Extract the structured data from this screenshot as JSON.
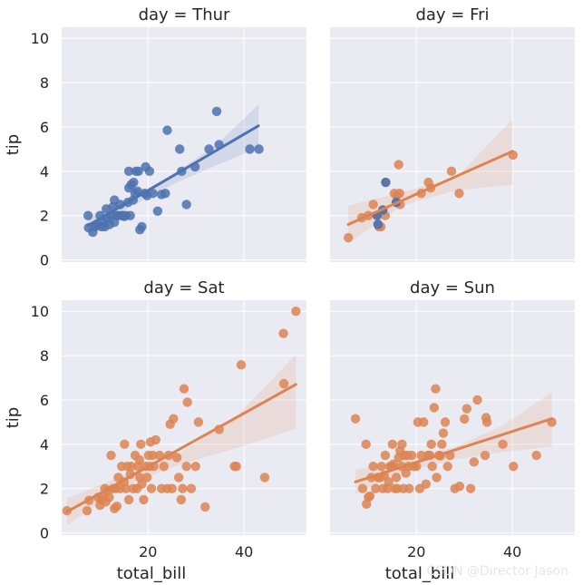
{
  "watermark": "CSDN @Director Jason",
  "chart_data": {
    "type": "scatter",
    "layout": "facet-grid-2x2",
    "xlabel": "total_bill",
    "ylabel": "tip",
    "xlim": [
      2,
      53
    ],
    "ylim": [
      -0.1,
      10.5
    ],
    "xticks": [
      20,
      40
    ],
    "yticks": [
      0,
      2,
      4,
      6,
      8,
      10
    ],
    "grid": true,
    "regression": "linear fit with confidence band",
    "colors": {
      "blue": "#4c72b0",
      "orange": "#dd8452"
    },
    "panels": [
      {
        "title": "day = Thur",
        "color": "#4c72b0",
        "fit": {
          "x": [
            7.5,
            43.0
          ],
          "y": [
            1.55,
            6.05
          ]
        },
        "band": {
          "x": [
            7.5,
            16,
            25,
            34,
            43
          ],
          "lo": [
            1.05,
            2.35,
            3.4,
            4.25,
            5.05
          ],
          "hi": [
            1.95,
            2.75,
            3.85,
            5.15,
            7.0
          ]
        },
        "points": [
          [
            7.5,
            2.0
          ],
          [
            7.6,
            1.45
          ],
          [
            8.5,
            1.25
          ],
          [
            9.0,
            1.5
          ],
          [
            9.5,
            1.6
          ],
          [
            10.0,
            2.0
          ],
          [
            10.3,
            1.5
          ],
          [
            10.6,
            1.7
          ],
          [
            11.0,
            1.5
          ],
          [
            11.3,
            2.3
          ],
          [
            11.6,
            1.85
          ],
          [
            12.0,
            1.6
          ],
          [
            12.3,
            2.0
          ],
          [
            12.7,
            2.4
          ],
          [
            13.0,
            1.7
          ],
          [
            13.0,
            2.7
          ],
          [
            13.4,
            2.0
          ],
          [
            13.8,
            2.0
          ],
          [
            14.2,
            2.5
          ],
          [
            14.5,
            2.0
          ],
          [
            14.8,
            2.0
          ],
          [
            15.0,
            1.96
          ],
          [
            15.4,
            2.0
          ],
          [
            15.8,
            2.6
          ],
          [
            16.0,
            3.25
          ],
          [
            16.0,
            4.0
          ],
          [
            16.3,
            2.0
          ],
          [
            16.5,
            3.4
          ],
          [
            16.9,
            2.7
          ],
          [
            17.0,
            3.5
          ],
          [
            17.3,
            3.0
          ],
          [
            17.5,
            4.0
          ],
          [
            17.8,
            3.1
          ],
          [
            18.0,
            4.0
          ],
          [
            18.3,
            1.36
          ],
          [
            18.7,
            1.5
          ],
          [
            19.3,
            3.0
          ],
          [
            19.5,
            4.2
          ],
          [
            19.8,
            2.9
          ],
          [
            20.3,
            4.0
          ],
          [
            21.0,
            3.0
          ],
          [
            22.0,
            2.2
          ],
          [
            22.8,
            2.95
          ],
          [
            23.6,
            3.0
          ],
          [
            24.0,
            5.85
          ],
          [
            26.6,
            5.0
          ],
          [
            27.0,
            4.0
          ],
          [
            28.0,
            2.5
          ],
          [
            29.8,
            4.2
          ],
          [
            32.7,
            5.0
          ],
          [
            34.3,
            6.7
          ],
          [
            34.8,
            5.2
          ],
          [
            41.2,
            5.0
          ],
          [
            43.1,
            5.0
          ]
        ]
      },
      {
        "title": "day = Fri",
        "color": "#dd8452",
        "fit": {
          "x": [
            5.8,
            40.0
          ],
          "y": [
            1.6,
            4.9
          ]
        },
        "band": {
          "x": [
            5.8,
            17,
            28.5,
            40
          ],
          "lo": [
            0.75,
            2.45,
            3.15,
            3.4
          ],
          "hi": [
            2.45,
            3.05,
            3.75,
            6.35
          ]
        },
        "points": [
          [
            5.8,
            1.0
          ],
          [
            8.6,
            1.9
          ],
          [
            10.0,
            2.0
          ],
          [
            11.0,
            2.5
          ],
          [
            12.2,
            1.5
          ],
          [
            12.6,
            1.5
          ],
          [
            13.5,
            2.0
          ],
          [
            15.4,
            3.0
          ],
          [
            15.9,
            2.9
          ],
          [
            16.3,
            4.3
          ],
          [
            16.5,
            3.0
          ],
          [
            16.6,
            2.5
          ],
          [
            21.0,
            3.0
          ],
          [
            22.5,
            3.5
          ],
          [
            23.0,
            3.25
          ],
          [
            27.3,
            4.0
          ],
          [
            28.9,
            3.0
          ],
          [
            40.1,
            4.73
          ],
          [
            13.6,
            3.5
          ],
          [
            12.0,
            1.6
          ],
          [
            15.8,
            2.6
          ],
          [
            11.8,
            2.0
          ],
          [
            13.0,
            2.25
          ]
        ],
        "blue_points": [
          [
            13.6,
            3.5
          ],
          [
            12.0,
            1.6
          ],
          [
            15.8,
            2.6
          ],
          [
            11.8,
            2.0
          ],
          [
            13.0,
            2.25
          ]
        ]
      },
      {
        "title": "day = Sat",
        "color": "#dd8452",
        "fit": {
          "x": [
            3.1,
            50.8
          ],
          "y": [
            0.95,
            6.7
          ]
        },
        "band": {
          "x": [
            3.1,
            15,
            26.9,
            38.8,
            50.8
          ],
          "lo": [
            0.35,
            2.1,
            3.1,
            3.85,
            4.7
          ],
          "hi": [
            1.55,
            2.6,
            3.65,
            5.35,
            8.05
          ]
        },
        "points": [
          [
            3.1,
            1.0
          ],
          [
            7.3,
            1.0
          ],
          [
            7.7,
            1.47
          ],
          [
            9.6,
            1.6
          ],
          [
            10.0,
            1.25
          ],
          [
            10.3,
            1.5
          ],
          [
            10.6,
            1.66
          ],
          [
            11.0,
            2.0
          ],
          [
            11.2,
            1.4
          ],
          [
            11.6,
            1.9
          ],
          [
            11.9,
            1.6
          ],
          [
            12.3,
            3.5
          ],
          [
            12.7,
            2.0
          ],
          [
            13.0,
            1.1
          ],
          [
            13.3,
            2.0
          ],
          [
            13.5,
            1.2
          ],
          [
            13.8,
            2.5
          ],
          [
            14.2,
            2.0
          ],
          [
            14.5,
            3.0
          ],
          [
            15.0,
            2.3
          ],
          [
            15.1,
            4.0
          ],
          [
            15.4,
            2.0
          ],
          [
            15.7,
            3.0
          ],
          [
            16.0,
            1.5
          ],
          [
            16.3,
            2.64
          ],
          [
            16.5,
            3.0
          ],
          [
            16.9,
            2.0
          ],
          [
            17.3,
            3.5
          ],
          [
            17.7,
            2.0
          ],
          [
            17.9,
            3.0
          ],
          [
            18.2,
            3.3
          ],
          [
            18.3,
            2.5
          ],
          [
            18.5,
            4.0
          ],
          [
            18.7,
            2.2
          ],
          [
            19.1,
            1.5
          ],
          [
            19.5,
            3.0
          ],
          [
            19.8,
            2.5
          ],
          [
            20.1,
            3.5
          ],
          [
            20.3,
            3.0
          ],
          [
            20.5,
            4.1
          ],
          [
            20.7,
            2.0
          ],
          [
            21.0,
            3.5
          ],
          [
            21.2,
            3.0
          ],
          [
            21.6,
            4.2
          ],
          [
            22.4,
            3.5
          ],
          [
            22.8,
            2.0
          ],
          [
            23.3,
            3.0
          ],
          [
            24.0,
            2.0
          ],
          [
            24.3,
            3.5
          ],
          [
            24.6,
            4.9
          ],
          [
            25.0,
            2.0
          ],
          [
            25.3,
            5.15
          ],
          [
            26.0,
            3.4
          ],
          [
            26.4,
            2.5
          ],
          [
            26.9,
            1.5
          ],
          [
            27.2,
            2.0
          ],
          [
            27.5,
            6.5
          ],
          [
            28.0,
            3.0
          ],
          [
            28.2,
            5.9
          ],
          [
            29.0,
            2.0
          ],
          [
            29.9,
            3.0
          ],
          [
            30.5,
            5.0
          ],
          [
            31.9,
            1.17
          ],
          [
            34.8,
            4.67
          ],
          [
            38.0,
            3.0
          ],
          [
            38.4,
            3.0
          ],
          [
            39.4,
            7.58
          ],
          [
            44.3,
            2.5
          ],
          [
            48.2,
            9.0
          ],
          [
            48.3,
            6.73
          ],
          [
            50.8,
            10.0
          ]
        ]
      },
      {
        "title": "day = Sun",
        "color": "#dd8452",
        "fit": {
          "x": [
            7.3,
            48.2
          ],
          "y": [
            2.3,
            5.15
          ]
        },
        "band": {
          "x": [
            7.3,
            17.5,
            27.7,
            38,
            48.2
          ],
          "lo": [
            1.75,
            2.75,
            3.3,
            3.65,
            3.9
          ],
          "hi": [
            2.85,
            3.3,
            3.85,
            4.85,
            6.35
          ]
        },
        "points": [
          [
            7.3,
            5.15
          ],
          [
            8.8,
            2.0
          ],
          [
            9.5,
            4.0
          ],
          [
            9.6,
            1.3
          ],
          [
            10.0,
            1.61
          ],
          [
            10.3,
            1.66
          ],
          [
            10.6,
            2.5
          ],
          [
            11.0,
            3.0
          ],
          [
            11.5,
            2.0
          ],
          [
            12.0,
            2.5
          ],
          [
            12.4,
            2.5
          ],
          [
            12.7,
            3.0
          ],
          [
            13.0,
            2.0
          ],
          [
            13.3,
            2.6
          ],
          [
            13.5,
            3.5
          ],
          [
            14.0,
            2.0
          ],
          [
            14.2,
            2.3
          ],
          [
            14.5,
            3.0
          ],
          [
            14.8,
            3.0
          ],
          [
            15.0,
            4.0
          ],
          [
            15.2,
            3.1
          ],
          [
            15.5,
            2.0
          ],
          [
            15.8,
            2.5
          ],
          [
            16.0,
            2.0
          ],
          [
            16.3,
            3.4
          ],
          [
            16.6,
            3.71
          ],
          [
            16.9,
            3.0
          ],
          [
            17.0,
            4.0
          ],
          [
            17.3,
            2.0
          ],
          [
            17.5,
            3.5
          ],
          [
            17.8,
            2.7
          ],
          [
            18.1,
            3.5
          ],
          [
            18.3,
            3.0
          ],
          [
            18.5,
            2.0
          ],
          [
            19.0,
            3.5
          ],
          [
            19.4,
            3.0
          ],
          [
            20.0,
            3.0
          ],
          [
            20.3,
            5.0
          ],
          [
            20.7,
            2.0
          ],
          [
            21.0,
            3.5
          ],
          [
            21.5,
            5.0
          ],
          [
            22.0,
            2.2
          ],
          [
            22.4,
            3.5
          ],
          [
            22.8,
            3.5
          ],
          [
            23.1,
            4.0
          ],
          [
            23.3,
            3.0
          ],
          [
            23.7,
            5.65
          ],
          [
            24.0,
            6.5
          ],
          [
            24.2,
            2.5
          ],
          [
            24.7,
            3.5
          ],
          [
            25.0,
            3.48
          ],
          [
            25.3,
            4.0
          ],
          [
            25.6,
            4.5
          ],
          [
            26.0,
            5.0
          ],
          [
            26.5,
            3.0
          ],
          [
            27.0,
            3.5
          ],
          [
            28.0,
            2.0
          ],
          [
            29.0,
            2.1
          ],
          [
            30.0,
            5.14
          ],
          [
            30.5,
            5.6
          ],
          [
            31.3,
            2.0
          ],
          [
            32.0,
            3.2
          ],
          [
            32.7,
            6.0
          ],
          [
            34.3,
            3.5
          ],
          [
            34.5,
            5.2
          ],
          [
            34.7,
            5.0
          ],
          [
            38.0,
            4.0
          ],
          [
            40.2,
            3.0
          ],
          [
            45.0,
            3.5
          ],
          [
            48.2,
            5.0
          ]
        ]
      }
    ]
  }
}
